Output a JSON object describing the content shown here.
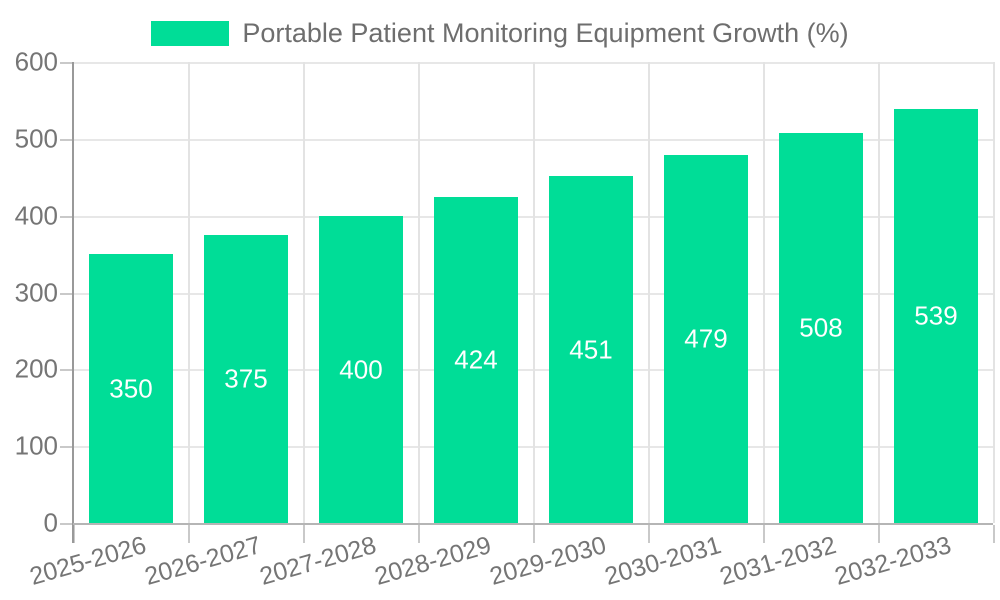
{
  "legend": {
    "label": "Portable Patient Monitoring Equipment Growth (%)"
  },
  "chart_data": {
    "type": "bar",
    "title": "Portable Patient Monitoring Equipment Growth (%)",
    "categories": [
      "2025-2026",
      "2026-2027",
      "2027-2028",
      "2028-2029",
      "2029-2030",
      "2030-2031",
      "2031-2032",
      "2032-2033"
    ],
    "values": [
      350,
      375,
      400,
      424,
      451,
      479,
      508,
      539
    ],
    "xlabel": "",
    "ylabel": "",
    "ylim": [
      0,
      600
    ],
    "yticks": [
      0,
      100,
      200,
      300,
      400,
      500,
      600
    ],
    "grid": true,
    "legend_position": "top-center",
    "value_label_position": "inside-center"
  },
  "colors": {
    "bar": "#00DD97",
    "background": "#ffffff",
    "grid_line_h": "#e7e7e7",
    "grid_line_v": "#e3e3e3",
    "y_axis_line": "#999999",
    "x_axis_line": "#b5b5b5",
    "tick_mark": "#c9c9c9",
    "axis_label": "#757575",
    "legend_text": "#6e6e6e",
    "value_label": "#ffffff"
  }
}
